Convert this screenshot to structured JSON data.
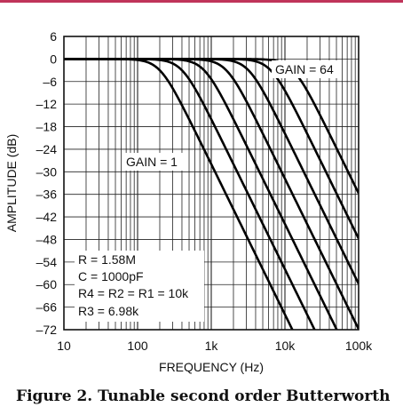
{
  "accent_color": "#c0345a",
  "caption": "Figure 2. Tunable second order Butterworth",
  "chart_data": {
    "type": "line",
    "title": "",
    "xlabel": "FREQUENCY (Hz)",
    "ylabel": "AMPLITUDE (dB)",
    "xscale": "log",
    "xlim": [
      10,
      100000
    ],
    "ylim": [
      -72,
      6
    ],
    "grid": true,
    "x_ticks": [
      {
        "value": 10,
        "label": "10"
      },
      {
        "value": 100,
        "label": "100"
      },
      {
        "value": 1000,
        "label": "1k"
      },
      {
        "value": 10000,
        "label": "10k"
      },
      {
        "value": 100000,
        "label": "100k"
      }
    ],
    "y_ticks": [
      {
        "value": 6,
        "label": "6"
      },
      {
        "value": 0,
        "label": "0"
      },
      {
        "value": -6,
        "label": "–6"
      },
      {
        "value": -12,
        "label": "–12"
      },
      {
        "value": -18,
        "label": "–18"
      },
      {
        "value": -24,
        "label": "–24"
      },
      {
        "value": -30,
        "label": "–30"
      },
      {
        "value": -36,
        "label": "–36"
      },
      {
        "value": -42,
        "label": "–42"
      },
      {
        "value": -48,
        "label": "–48"
      },
      {
        "value": -54,
        "label": "–54"
      },
      {
        "value": -60,
        "label": "–60"
      },
      {
        "value": -66,
        "label": "–66"
      },
      {
        "value": -72,
        "label": "–72"
      }
    ],
    "series": [
      {
        "cutoff_hz": 200
      },
      {
        "cutoff_hz": 400
      },
      {
        "cutoff_hz": 800
      },
      {
        "cutoff_hz": 1600
      },
      {
        "cutoff_hz": 3200
      },
      {
        "cutoff_hz": 6400
      },
      {
        "cutoff_hz": 12800
      }
    ],
    "annotations": {
      "gain_low": "GAIN = 1",
      "gain_high": "GAIN = 64",
      "components": [
        "R = 1.58M",
        "C = 1000pF",
        "R4 = R2 = R1 = 10k",
        "R3 = 6.98k"
      ]
    }
  }
}
